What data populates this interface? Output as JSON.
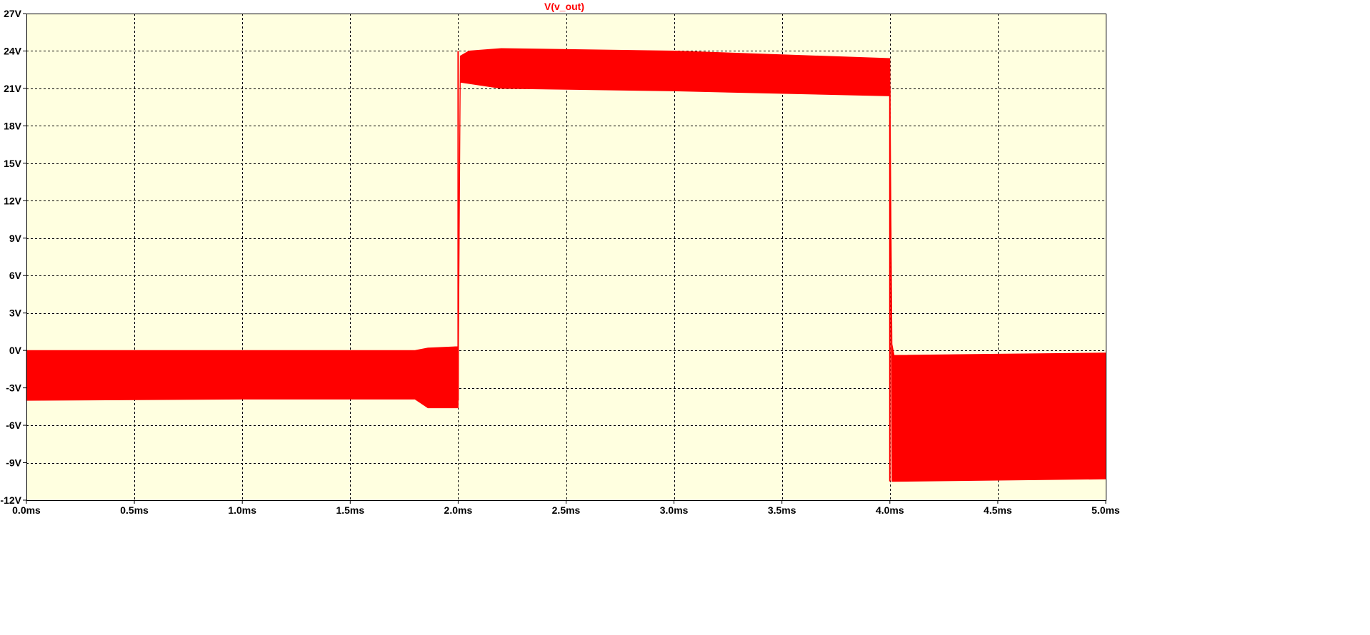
{
  "chart_data": {
    "type": "line",
    "title": "V(v_out)",
    "xlabel": "",
    "ylabel": "",
    "xlim": [
      0.0,
      5.0
    ],
    "ylim": [
      -12,
      27
    ],
    "x_ticks": [
      0.0,
      0.5,
      1.0,
      1.5,
      2.0,
      2.5,
      3.0,
      3.5,
      4.0,
      4.5,
      5.0
    ],
    "x_tick_labels": [
      "0.0ms",
      "0.5ms",
      "1.0ms",
      "1.5ms",
      "2.0ms",
      "2.5ms",
      "3.0ms",
      "3.5ms",
      "4.0ms",
      "4.5ms",
      "5.0ms"
    ],
    "y_ticks": [
      -12,
      -9,
      -6,
      -3,
      0,
      3,
      6,
      9,
      12,
      15,
      18,
      21,
      24,
      27
    ],
    "y_tick_labels": [
      "-12V",
      "-9V",
      "-6V",
      "-3V",
      "0V",
      "3V",
      "6V",
      "9V",
      "12V",
      "15V",
      "18V",
      "21V",
      "24V",
      "27V"
    ],
    "grid": true,
    "background_color": "#ffffe0",
    "grid_color": "#000000",
    "series": [
      {
        "name": "V(v_out)",
        "color": "#ff0000",
        "envelope_upper": [
          [
            0.0,
            0.0
          ],
          [
            1.8,
            0.0
          ],
          [
            1.86,
            0.2
          ],
          [
            2.0,
            0.3
          ],
          [
            2.01,
            23.6
          ],
          [
            2.05,
            24.0
          ],
          [
            2.2,
            24.2
          ],
          [
            3.0,
            24.0
          ],
          [
            4.0,
            23.4
          ],
          [
            4.01,
            0.5
          ],
          [
            4.02,
            -0.4
          ],
          [
            4.5,
            -0.3
          ],
          [
            5.0,
            -0.2
          ]
        ],
        "envelope_lower": [
          [
            0.0,
            -4.0
          ],
          [
            1.0,
            -3.9
          ],
          [
            1.8,
            -3.9
          ],
          [
            1.86,
            -4.6
          ],
          [
            2.0,
            -4.6
          ],
          [
            2.01,
            21.5
          ],
          [
            2.2,
            21.0
          ],
          [
            3.0,
            20.8
          ],
          [
            4.0,
            20.4
          ],
          [
            4.01,
            -10.5
          ],
          [
            4.5,
            -10.4
          ],
          [
            5.0,
            -10.3
          ]
        ],
        "transitions": [
          {
            "x": 2.0,
            "from": -4.0,
            "to": 24.0
          },
          {
            "x": 4.0,
            "from": 21.0,
            "to": -10.5
          }
        ]
      }
    ]
  }
}
